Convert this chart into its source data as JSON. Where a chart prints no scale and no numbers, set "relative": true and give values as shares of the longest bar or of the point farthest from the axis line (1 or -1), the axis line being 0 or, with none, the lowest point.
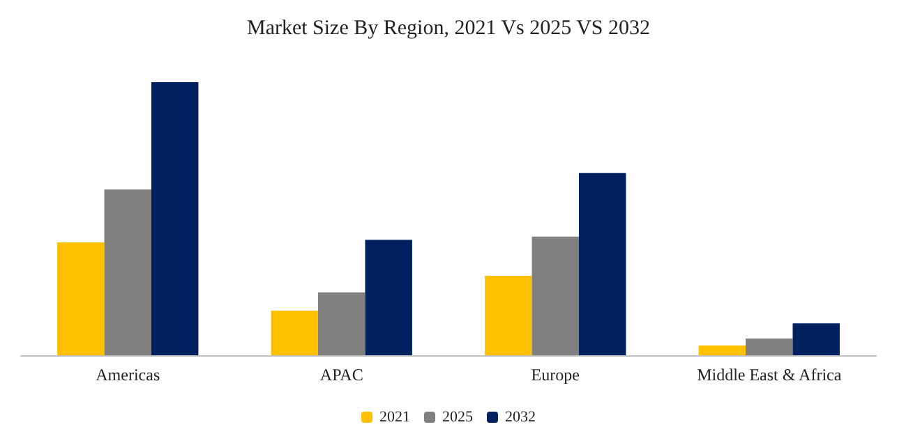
{
  "chart_data": {
    "type": "bar",
    "title": "Market Size By Region, 2021 Vs 2025 VS 2032",
    "relative": true,
    "categories": [
      "Americas",
      "APAC",
      "Europe",
      "Middle East & Africa"
    ],
    "series": [
      {
        "name": "2021",
        "color": "#ffc000",
        "values": [
          0.413,
          0.163,
          0.291,
          0.036
        ]
      },
      {
        "name": "2025",
        "color": "#808080",
        "values": [
          0.607,
          0.23,
          0.434,
          0.061
        ]
      },
      {
        "name": "2032",
        "color": "#002060",
        "values": [
          1,
          0.423,
          0.668,
          0.117
        ]
      }
    ],
    "legend": "bottom"
  }
}
